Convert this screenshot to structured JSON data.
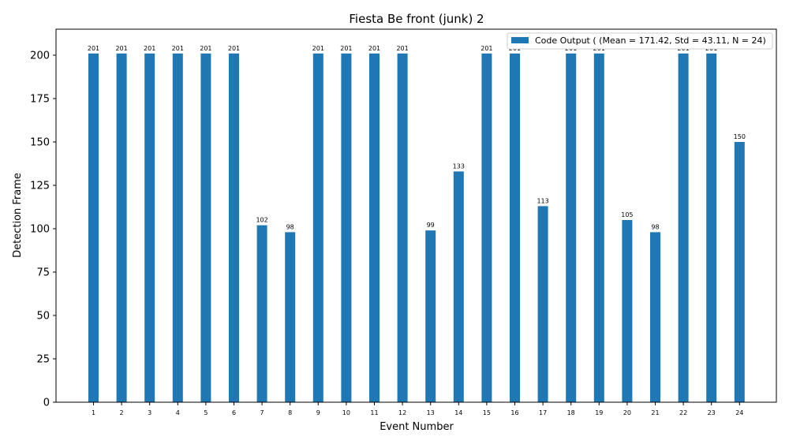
{
  "chart_data": {
    "type": "bar",
    "title": "Fiesta Be front (junk) 2",
    "xlabel": "Event Number",
    "ylabel": "Detection Frame",
    "categories": [
      "1",
      "2",
      "3",
      "4",
      "5",
      "6",
      "7",
      "8",
      "9",
      "10",
      "11",
      "12",
      "13",
      "14",
      "15",
      "16",
      "17",
      "18",
      "19",
      "20",
      "21",
      "22",
      "23",
      "24"
    ],
    "series": [
      {
        "name": "Code Output ( (Mean = 171.42, Std = 43.11, N = 24)",
        "color": "#1f77b4",
        "values": [
          201,
          201,
          201,
          201,
          201,
          201,
          102,
          98,
          201,
          201,
          201,
          201,
          99,
          133,
          201,
          201,
          113,
          201,
          201,
          105,
          98,
          201,
          201,
          150
        ]
      }
    ],
    "ylim": [
      0,
      215
    ],
    "yticks": [
      0,
      25,
      50,
      75,
      100,
      125,
      150,
      175,
      200
    ],
    "grid": false,
    "legend_position": "top-right",
    "data_labels": true
  }
}
